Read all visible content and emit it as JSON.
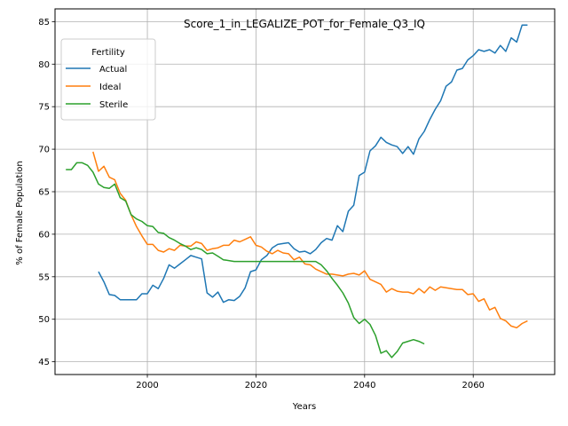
{
  "chart_data": {
    "type": "line",
    "title": "Score_1_in_LEGALIZE_POT_for_Female_Q3_IQ",
    "xlabel": "Years",
    "ylabel": "% of Female Population",
    "xlim": [
      1983,
      2075
    ],
    "ylim": [
      43.5,
      86.5
    ],
    "xticks": [
      2000,
      2020,
      2040,
      2060
    ],
    "yticks": [
      45,
      50,
      55,
      60,
      65,
      70,
      75,
      80,
      85
    ],
    "grid": true,
    "legend": {
      "title": "Fertility",
      "placement": "top-left"
    },
    "colors": {
      "Actual": "#1f77b4",
      "Ideal": "#ff7f0e",
      "Sterile": "#2ca02c"
    },
    "series": [
      {
        "name": "Actual",
        "x": [
          1991,
          1992,
          1993,
          1994,
          1995,
          1996,
          1997,
          1998,
          1999,
          2000,
          2001,
          2002,
          2003,
          2004,
          2005,
          2006,
          2007,
          2008,
          2009,
          2010,
          2011,
          2012,
          2013,
          2014,
          2015,
          2016,
          2017,
          2018,
          2019,
          2020,
          2021,
          2022,
          2023,
          2024,
          2025,
          2026,
          2027,
          2028,
          2029,
          2030,
          2031,
          2032,
          2033,
          2034,
          2035,
          2036,
          2037,
          2038,
          2039,
          2040,
          2041,
          2042,
          2043,
          2044,
          2045,
          2046,
          2047,
          2048,
          2049,
          2050,
          2051,
          2052,
          2053,
          2054,
          2055,
          2056,
          2057,
          2058,
          2059,
          2060,
          2061,
          2062,
          2063,
          2064,
          2065,
          2066,
          2067,
          2068,
          2069,
          2070
        ],
        "values": [
          55.6,
          54.4,
          52.9,
          52.8,
          52.3,
          52.3,
          52.3,
          52.3,
          53.0,
          53.0,
          54.0,
          53.6,
          54.8,
          56.4,
          56.0,
          56.5,
          57.0,
          57.5,
          57.3,
          57.1,
          53.1,
          52.6,
          53.2,
          52.0,
          52.3,
          52.2,
          52.7,
          53.7,
          55.6,
          55.8,
          57.0,
          57.5,
          58.4,
          58.8,
          58.9,
          59.0,
          58.3,
          57.9,
          58.0,
          57.7,
          58.2,
          59.0,
          59.5,
          59.3,
          61.0,
          60.3,
          62.7,
          63.4,
          66.9,
          67.3,
          69.8,
          70.4,
          71.4,
          70.8,
          70.5,
          70.3,
          69.5,
          70.3,
          69.4,
          71.2,
          72.1,
          73.5,
          74.7,
          75.7,
          77.4,
          77.9,
          79.3,
          79.5,
          80.5,
          81.0,
          81.7,
          81.5,
          81.7,
          81.3,
          82.2,
          81.5,
          83.1,
          82.6,
          84.6,
          84.6
        ]
      },
      {
        "name": "Ideal",
        "x": [
          1990,
          1991,
          1992,
          1993,
          1994,
          1995,
          1996,
          1997,
          1998,
          1999,
          2000,
          2001,
          2002,
          2003,
          2004,
          2005,
          2006,
          2007,
          2008,
          2009,
          2010,
          2011,
          2012,
          2013,
          2014,
          2015,
          2016,
          2017,
          2018,
          2019,
          2020,
          2021,
          2022,
          2023,
          2024,
          2025,
          2026,
          2027,
          2028,
          2029,
          2030,
          2031,
          2032,
          2033,
          2034,
          2035,
          2036,
          2037,
          2038,
          2039,
          2040,
          2041,
          2042,
          2043,
          2044,
          2045,
          2046,
          2047,
          2048,
          2049,
          2050,
          2051,
          2052,
          2053,
          2054,
          2055,
          2056,
          2057,
          2058,
          2059,
          2060,
          2061,
          2062,
          2063,
          2064,
          2065,
          2066,
          2067,
          2068,
          2069,
          2070
        ],
        "values": [
          69.7,
          67.4,
          68.0,
          66.7,
          66.4,
          64.8,
          64.0,
          62.3,
          60.9,
          59.8,
          58.8,
          58.8,
          58.1,
          57.9,
          58.3,
          58.1,
          58.7,
          58.6,
          58.6,
          59.1,
          58.9,
          58.1,
          58.3,
          58.4,
          58.7,
          58.7,
          59.3,
          59.1,
          59.4,
          59.7,
          58.7,
          58.5,
          58.0,
          57.7,
          58.1,
          57.8,
          57.7,
          57.0,
          57.3,
          56.5,
          56.4,
          55.9,
          55.6,
          55.3,
          55.3,
          55.2,
          55.1,
          55.3,
          55.4,
          55.2,
          55.7,
          54.7,
          54.4,
          54.1,
          53.2,
          53.6,
          53.3,
          53.2,
          53.2,
          53.0,
          53.6,
          53.1,
          53.8,
          53.4,
          53.8,
          53.7,
          53.6,
          53.5,
          53.5,
          52.9,
          53.0,
          52.1,
          52.4,
          51.1,
          51.4,
          50.1,
          49.8,
          49.2,
          49.0,
          49.5,
          49.8
        ]
      },
      {
        "name": "Sterile",
        "x": [
          1985,
          1986,
          1987,
          1988,
          1989,
          1990,
          1991,
          1992,
          1993,
          1994,
          1995,
          1996,
          1997,
          1998,
          1999,
          2000,
          2001,
          2002,
          2003,
          2004,
          2005,
          2006,
          2007,
          2008,
          2009,
          2010,
          2011,
          2012,
          2013,
          2014,
          2015,
          2016,
          2017,
          2018,
          2019,
          2020,
          2021,
          2022,
          2023,
          2024,
          2025,
          2026,
          2027,
          2028,
          2029,
          2030,
          2031,
          2032,
          2033,
          2034,
          2035,
          2036,
          2037,
          2038,
          2039,
          2040,
          2041,
          2042,
          2043,
          2044,
          2045,
          2046,
          2047,
          2048,
          2049,
          2050,
          2051
        ],
        "values": [
          67.6,
          67.6,
          68.4,
          68.4,
          68.1,
          67.3,
          65.9,
          65.5,
          65.4,
          65.9,
          64.3,
          63.9,
          62.3,
          61.8,
          61.5,
          61.0,
          60.9,
          60.2,
          60.1,
          59.6,
          59.3,
          58.9,
          58.6,
          58.2,
          58.4,
          58.2,
          57.7,
          57.8,
          57.4,
          57.0,
          56.9,
          56.8,
          56.8,
          56.8,
          56.8,
          56.8,
          56.8,
          56.8,
          56.8,
          56.8,
          56.8,
          56.8,
          56.8,
          56.8,
          56.8,
          56.8,
          56.8,
          56.4,
          55.7,
          54.8,
          54.0,
          53.1,
          51.9,
          50.2,
          49.5,
          50.0,
          49.4,
          48.1,
          46.0,
          46.3,
          45.5,
          46.2,
          47.2,
          47.4,
          47.6,
          47.4,
          47.1
        ]
      }
    ]
  }
}
